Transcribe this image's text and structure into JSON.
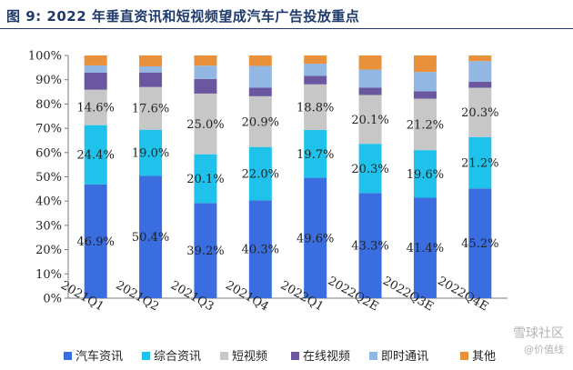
{
  "title": "图 9:  2022 年垂直资讯和短视频望成汽车广告投放重点",
  "watermark": {
    "main": "雪球社区",
    "sub": "@价值线"
  },
  "colors": {
    "auto_news": "#3a6ee0",
    "general_news": "#1fc2ea",
    "short_video": "#c7c7c7",
    "online_video": "#6a57a0",
    "instant_msg": "#92b7e3",
    "other": "#e8913a"
  },
  "chart_data": {
    "type": "bar",
    "stacked": true,
    "categories": [
      "2021Q1",
      "2021Q2",
      "2021Q3",
      "2021Q4",
      "2022Q1",
      "2022Q2E",
      "2022Q3E",
      "2022Q4E"
    ],
    "ylim": [
      0,
      100
    ],
    "yticks": [
      "0%",
      "10%",
      "20%",
      "30%",
      "40%",
      "50%",
      "60%",
      "70%",
      "80%",
      "90%",
      "100%"
    ],
    "series": [
      {
        "name": "汽车资讯",
        "key": "auto_news",
        "values": [
          46.9,
          50.4,
          39.2,
          40.3,
          49.6,
          43.3,
          41.4,
          45.2
        ],
        "labels": [
          "46.9%",
          "50.4%",
          "39.2%",
          "40.3%",
          "49.6%",
          "43.3%",
          "41.4%",
          "45.2%"
        ]
      },
      {
        "name": "综合资讯",
        "key": "general_news",
        "values": [
          24.4,
          19.0,
          20.1,
          22.0,
          19.7,
          20.3,
          19.6,
          21.2
        ],
        "labels": [
          "24.4%",
          "19.0%",
          "20.1%",
          "22.0%",
          "19.7%",
          "20.3%",
          "19.6%",
          "21.2%"
        ]
      },
      {
        "name": "短视频",
        "key": "short_video",
        "values": [
          14.6,
          17.6,
          25.0,
          20.9,
          18.8,
          20.1,
          21.2,
          20.3
        ],
        "labels": [
          "14.6%",
          "17.6%",
          "25.0%",
          "20.9%",
          "18.8%",
          "20.1%",
          "21.2%",
          "20.3%"
        ]
      },
      {
        "name": "在线视频",
        "key": "online_video",
        "values": [
          7.0,
          6.0,
          6.0,
          3.5,
          3.5,
          3.0,
          3.0,
          2.5
        ]
      },
      {
        "name": "即时通讯",
        "key": "instant_msg",
        "values": [
          3.0,
          2.5,
          5.5,
          9.0,
          5.0,
          7.5,
          8.0,
          8.5
        ]
      },
      {
        "name": "其他",
        "key": "other",
        "values": [
          4.1,
          4.5,
          4.2,
          4.3,
          3.4,
          5.8,
          6.8,
          2.3
        ]
      }
    ],
    "grid": false,
    "legend": "bottom"
  }
}
